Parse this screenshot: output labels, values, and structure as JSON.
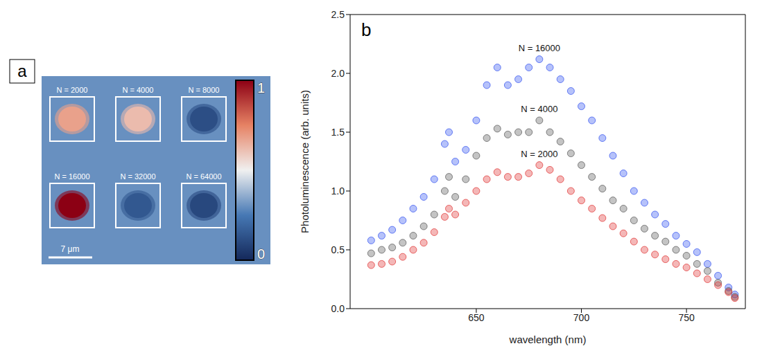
{
  "chart_data": [
    {
      "type": "heatmap",
      "panel": "a",
      "maps": [
        {
          "label": "N = 2000",
          "intensity": 0.68
        },
        {
          "label": "N = 4000",
          "intensity": 0.62
        },
        {
          "label": "N = 8000",
          "intensity": 0.12
        },
        {
          "label": "N = 16000",
          "intensity": 1.0
        },
        {
          "label": "N = 32000",
          "intensity": 0.15
        },
        {
          "label": "N = 64000",
          "intensity": 0.1
        }
      ],
      "background": 0.3,
      "colorbar": {
        "range": [
          0,
          1
        ],
        "ticks": [
          0,
          1
        ]
      },
      "scale_bar": "7 μm"
    },
    {
      "type": "scatter",
      "panel": "b",
      "x_label": "wavelength (nm)",
      "y_label": "Photoluminescence (arb. units)",
      "x": [
        600,
        605,
        610,
        615,
        620,
        625,
        630,
        635,
        637,
        640,
        645,
        650,
        655,
        660,
        665,
        670,
        675,
        680,
        685,
        690,
        695,
        700,
        705,
        710,
        715,
        720,
        725,
        730,
        735,
        740,
        745,
        750,
        755,
        760,
        765,
        770,
        773
      ],
      "series": [
        {
          "name": "N = 16000",
          "color": "#2f4ff0",
          "marker": "circle",
          "values": [
            0.58,
            0.62,
            0.67,
            0.75,
            0.85,
            0.95,
            1.1,
            1.4,
            1.5,
            1.25,
            1.35,
            1.6,
            1.9,
            2.05,
            1.9,
            1.95,
            2.05,
            2.12,
            2.05,
            1.95,
            1.85,
            1.72,
            1.6,
            1.45,
            1.3,
            1.15,
            1.0,
            0.9,
            0.8,
            0.72,
            0.62,
            0.55,
            0.48,
            0.38,
            0.28,
            0.18,
            0.12
          ]
        },
        {
          "name": "N = 4000",
          "color": "#555555",
          "marker": "circle",
          "values": [
            0.47,
            0.5,
            0.52,
            0.56,
            0.62,
            0.7,
            0.8,
            1.0,
            1.12,
            0.95,
            1.1,
            1.3,
            1.45,
            1.53,
            1.48,
            1.5,
            1.5,
            1.6,
            1.5,
            1.42,
            1.32,
            1.22,
            1.12,
            1.02,
            0.92,
            0.85,
            0.75,
            0.68,
            0.62,
            0.57,
            0.5,
            0.45,
            0.38,
            0.32,
            0.22,
            0.15,
            0.1
          ]
        },
        {
          "name": "N = 2000",
          "color": "#e03030",
          "marker": "circle",
          "values": [
            0.37,
            0.38,
            0.4,
            0.44,
            0.5,
            0.56,
            0.65,
            0.78,
            0.85,
            0.8,
            0.9,
            1.0,
            1.1,
            1.16,
            1.12,
            1.12,
            1.15,
            1.22,
            1.18,
            1.1,
            1.0,
            0.92,
            0.85,
            0.77,
            0.7,
            0.64,
            0.57,
            0.5,
            0.46,
            0.42,
            0.38,
            0.35,
            0.3,
            0.25,
            0.2,
            0.14,
            0.09
          ]
        }
      ],
      "xlim": [
        590,
        778
      ],
      "xticks": [
        650,
        700,
        750
      ],
      "ylim": [
        0,
        2.5
      ],
      "yticks": [
        {
          "value": 0,
          "label": "0.0"
        },
        {
          "value": 0.5,
          "label": "0.5"
        },
        {
          "value": 1,
          "label": "1.0"
        },
        {
          "value": 1.5,
          "label": "1.5"
        },
        {
          "value": 2,
          "label": "2.0"
        },
        {
          "value": 2.5,
          "label": "2.5"
        }
      ],
      "grid": false
    }
  ]
}
